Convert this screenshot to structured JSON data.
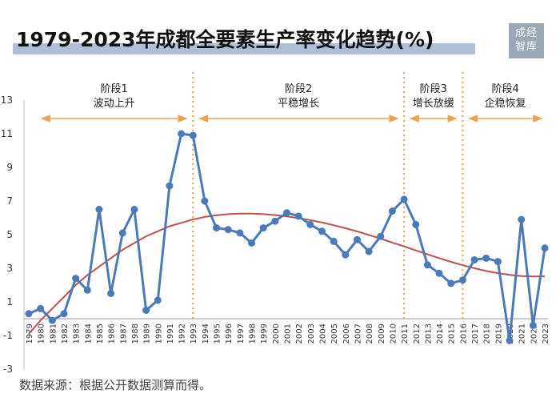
{
  "title": "1979-2023年成都全要素生产率变化趋势(%)",
  "logo": {
    "line1": "成经",
    "line2": "智库"
  },
  "source": "数据来源：根据公开数据测算而得。",
  "colors": {
    "series": "#4a7ab8",
    "trend": "#c0504d",
    "phase_line": "#f0a050",
    "arrow": "#f0a050",
    "title_underline": "#aebfd6",
    "logo_bg": "#9aa8ba"
  },
  "chart_data": {
    "type": "line",
    "title": "1979-2023年成都全要素生产率变化趋势(%)",
    "xlabel": "",
    "ylabel": "",
    "ylim": [
      -3,
      13
    ],
    "yticks": [
      -3,
      -1,
      1,
      3,
      5,
      7,
      9,
      11,
      13
    ],
    "grid": false,
    "x": [
      "1979",
      "1980",
      "1981",
      "1982",
      "1983",
      "1984",
      "1985",
      "1986",
      "1987",
      "1988",
      "1989",
      "1990",
      "1991",
      "1992",
      "1993",
      "1994",
      "1995",
      "1996",
      "1997",
      "1998",
      "1999",
      "2000",
      "2001",
      "2002",
      "2003",
      "2004",
      "2005",
      "2006",
      "2007",
      "2008",
      "2009",
      "2010",
      "2011",
      "2012",
      "2013",
      "2014",
      "2015",
      "2016",
      "2017",
      "2018",
      "2019",
      "2020",
      "2021",
      "2022",
      "2023"
    ],
    "series": [
      {
        "values": [
          0.3,
          0.6,
          -0.1,
          0.3,
          2.4,
          1.7,
          6.5,
          1.5,
          5.1,
          6.5,
          0.5,
          1.1,
          7.9,
          11.0,
          10.9,
          7.0,
          5.4,
          5.3,
          5.1,
          4.5,
          5.4,
          5.8,
          6.3,
          6.1,
          5.6,
          5.2,
          4.6,
          3.8,
          4.7,
          4.0,
          4.9,
          6.4,
          7.1,
          5.6,
          3.2,
          2.7,
          2.1,
          2.3,
          3.5,
          3.6,
          3.4,
          -1.3,
          5.9,
          -0.4,
          4.2
        ]
      },
      {
        "type": "trend",
        "values": [
          -0.9,
          -0.1,
          0.6,
          1.3,
          2.0,
          2.6,
          3.1,
          3.6,
          4.1,
          4.5,
          4.9,
          5.2,
          5.5,
          5.7,
          5.9,
          6.05,
          6.15,
          6.22,
          6.25,
          6.25,
          6.22,
          6.16,
          6.08,
          5.98,
          5.86,
          5.72,
          5.56,
          5.38,
          5.19,
          4.98,
          4.76,
          4.53,
          4.3,
          4.06,
          3.83,
          3.6,
          3.38,
          3.18,
          3.0,
          2.84,
          2.71,
          2.61,
          2.54,
          2.51,
          2.52
        ]
      }
    ],
    "phase_boundaries": [
      "1993",
      "2011",
      "2016"
    ],
    "phases": [
      {
        "name": "阶段1",
        "desc": "波动上升",
        "from": "1979",
        "to": "1993"
      },
      {
        "name": "阶段2",
        "desc": "平稳增长",
        "from": "1993",
        "to": "2011"
      },
      {
        "name": "阶段3",
        "desc": "增长放缓",
        "from": "2011",
        "to": "2016"
      },
      {
        "name": "阶段4",
        "desc": "企稳恢复",
        "from": "2016",
        "to": "2023"
      }
    ]
  }
}
